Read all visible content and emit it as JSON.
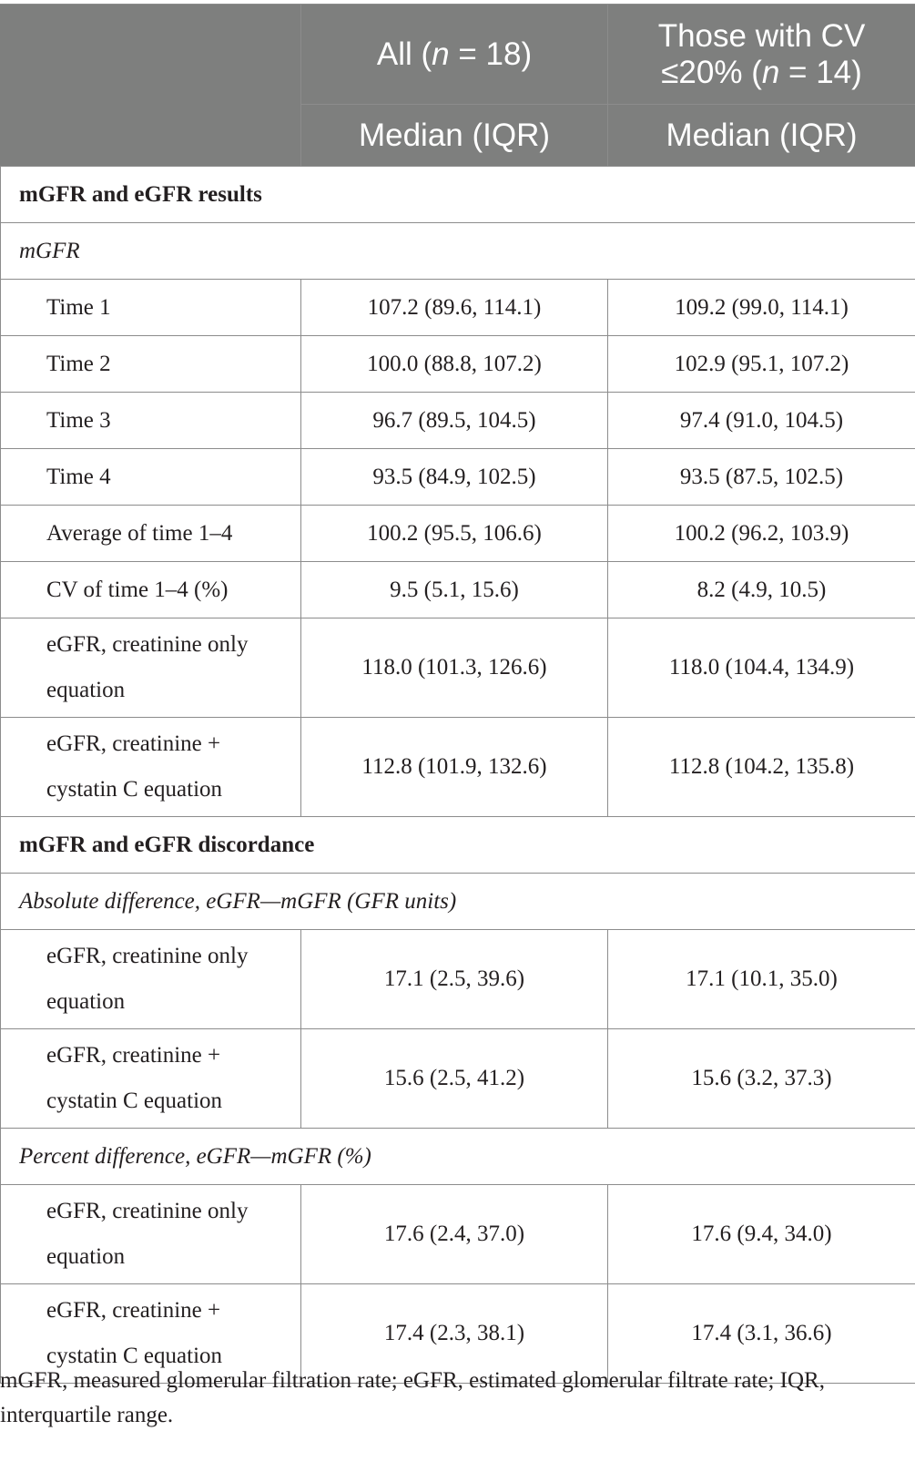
{
  "header": {
    "col_all": {
      "prefix": "All (",
      "n": "n",
      "suffix": " = 18)"
    },
    "col_cv": {
      "line1": "Those with CV",
      "prefix": "≤20% (",
      "n": "n",
      "suffix": " = 14)"
    },
    "sub_all": "Median (IQR)",
    "sub_cv": "Median (IQR)"
  },
  "sections": {
    "results_title": "mGFR and eGFR results",
    "mgfr_subtitle": "mGFR",
    "discordance_title": "mGFR and eGFR discordance",
    "abs_subtitle": "Absolute difference, eGFR—mGFR (GFR units)",
    "pct_subtitle": "Percent difference, eGFR—mGFR (%)"
  },
  "rows": [
    {
      "label": "Time 1",
      "all": "107.2 (89.6, 114.1)",
      "cv": "109.2 (99.0, 114.1)"
    },
    {
      "label": "Time 2",
      "all": "100.0 (88.8, 107.2)",
      "cv": "102.9 (95.1, 107.2)"
    },
    {
      "label": "Time 3",
      "all": "96.7 (89.5, 104.5)",
      "cv": "97.4 (91.0, 104.5)"
    },
    {
      "label": "Time 4",
      "all": "93.5 (84.9, 102.5)",
      "cv": "93.5 (87.5, 102.5)"
    },
    {
      "label": "Average of time 1–4",
      "all": "100.2 (95.5, 106.6)",
      "cv": "100.2 (96.2, 103.9)"
    },
    {
      "label": "CV of time 1–4 (%)",
      "all": "9.5 (5.1, 15.6)",
      "cv": "8.2 (4.9, 10.5)"
    },
    {
      "label": "eGFR, creatinine only equation",
      "all": "118.0 (101.3, 126.6)",
      "cv": "118.0 (104.4, 134.9)"
    },
    {
      "label": "eGFR, creatinine + cystatin C equation",
      "all": "112.8 (101.9, 132.6)",
      "cv": "112.8 (104.2, 135.8)"
    },
    {
      "label": "eGFR, creatinine only equation",
      "all": "17.1 (2.5, 39.6)",
      "cv": "17.1 (10.1, 35.0)"
    },
    {
      "label": "eGFR, creatinine + cystatin C equation",
      "all": "15.6 (2.5, 41.2)",
      "cv": "15.6 (3.2, 37.3)"
    },
    {
      "label": "eGFR, creatinine only equation",
      "all": "17.6 (2.4, 37.0)",
      "cv": "17.6 (9.4, 34.0)"
    },
    {
      "label": "eGFR, creatinine + cystatin C equation",
      "all": "17.4 (2.3, 38.1)",
      "cv": "17.4 (3.1, 36.6)"
    }
  ],
  "footnote": "mGFR, measured glomerular filtration rate; eGFR, estimated glomerular filtrate rate; IQR, interquartile range."
}
